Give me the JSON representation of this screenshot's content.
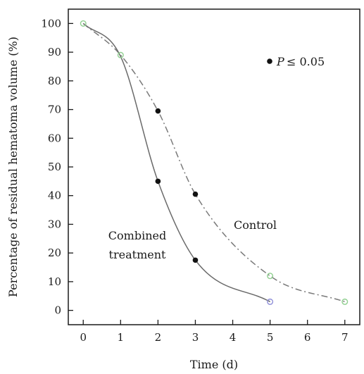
{
  "chart_data": {
    "type": "line",
    "title": "",
    "xlabel": "Time (d)",
    "ylabel": "Percentage of residual hematoma volume (%)",
    "xlim": [
      -0.4,
      7.4
    ],
    "ylim": [
      -5,
      105
    ],
    "xticks": [
      0,
      1,
      2,
      3,
      4,
      5,
      6,
      7
    ],
    "yticks": [
      0,
      10,
      20,
      30,
      40,
      50,
      60,
      70,
      80,
      90,
      100
    ],
    "grid": false,
    "series": [
      {
        "name": "Control",
        "line_style": "dash-dot",
        "color": "#7a7a7a",
        "x": [
          0,
          1,
          2,
          3,
          5,
          7
        ],
        "y": [
          100,
          89,
          69.5,
          40.5,
          12,
          3
        ],
        "significant": [
          false,
          false,
          true,
          true,
          false,
          false
        ]
      },
      {
        "name": "Combined treatment",
        "line_style": "solid",
        "color": "#6a6a6a",
        "x": [
          0,
          1,
          2,
          3,
          5
        ],
        "y": [
          100,
          88.5,
          45,
          17.5,
          3
        ],
        "significant": [
          false,
          false,
          true,
          true,
          false
        ]
      }
    ],
    "annotations": {
      "legend_marker_label": "P",
      "legend_marker_value": "≤ 0.05",
      "control_label": "Control",
      "combined_label_line1": "Combined",
      "combined_label_line2": "treatment"
    },
    "colors": {
      "significant_marker": "#111111",
      "open_marker_green": "#8fcf8f",
      "open_marker_blue": "#8e8ed8",
      "axis": "#1a1a1a"
    }
  }
}
